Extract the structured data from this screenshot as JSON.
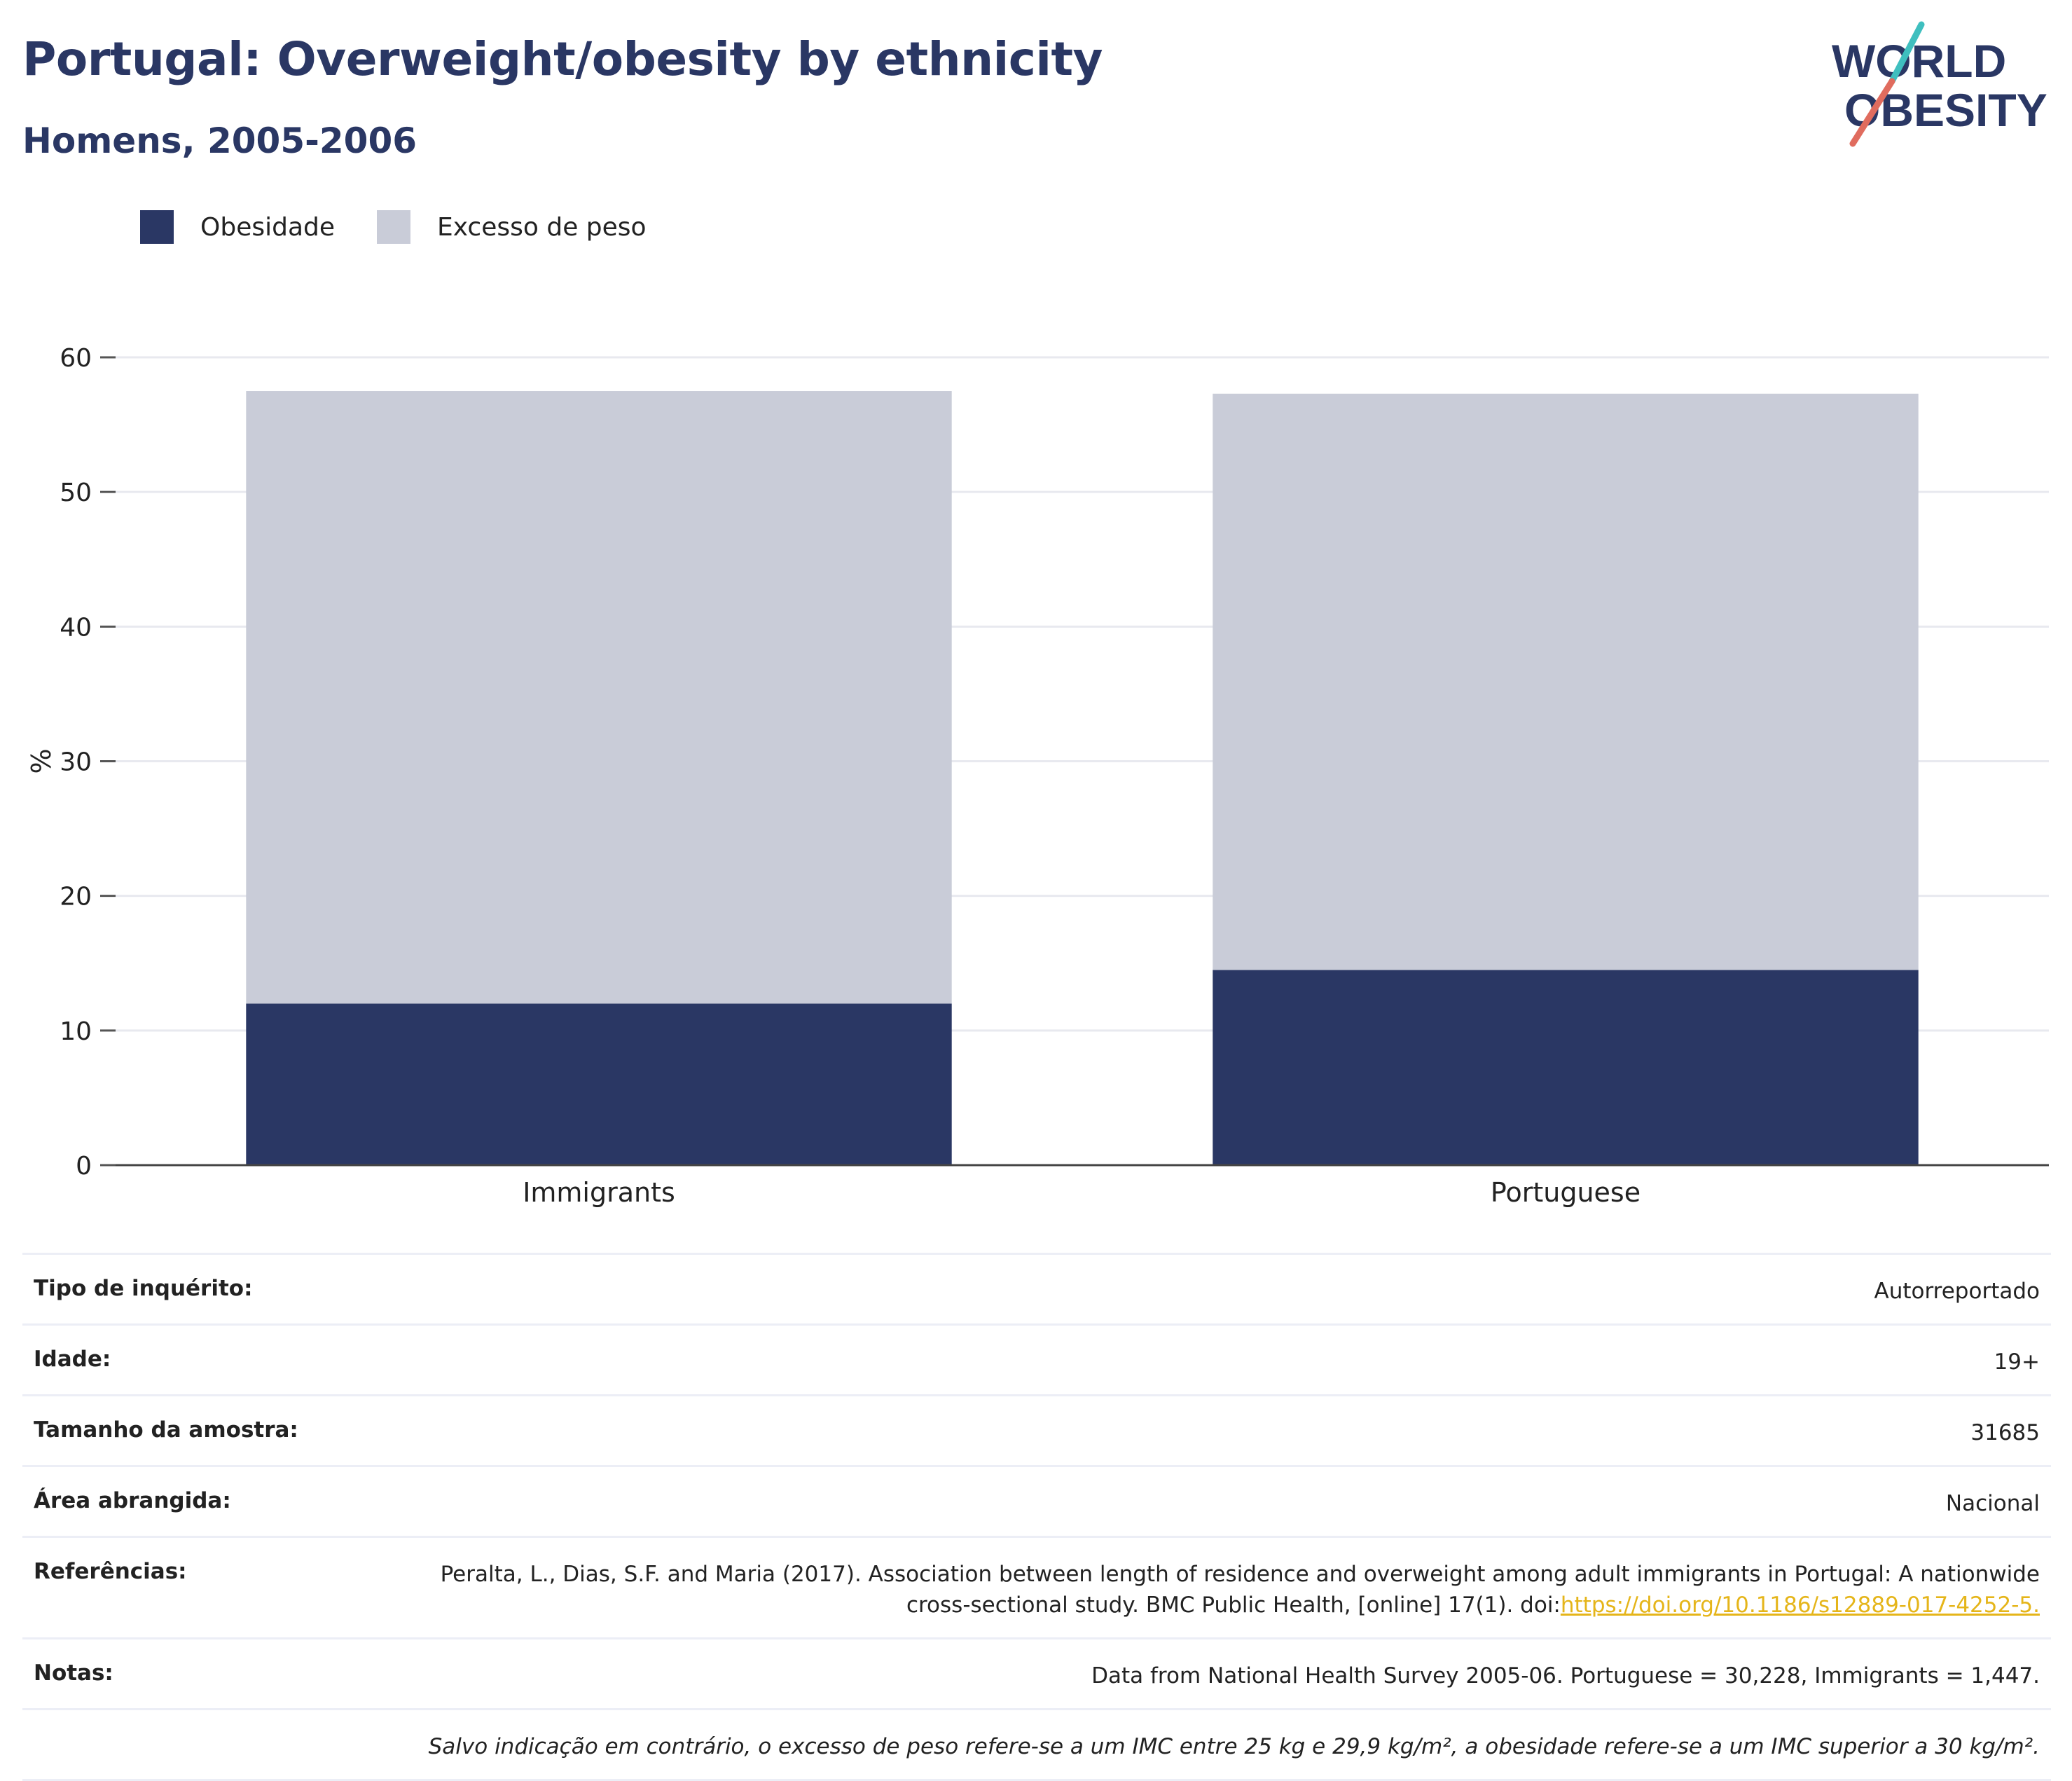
{
  "header": {
    "title": "Portugal: Overweight/obesity by ethnicity",
    "subtitle": "Homens, 2005-2006"
  },
  "logo": {
    "line1": "WORLD",
    "line2": "OBESITY",
    "colors": {
      "text": "#2a3764",
      "slash_top": "#3fbfbf",
      "slash_bottom": "#e06c5e"
    }
  },
  "chart_data": {
    "type": "bar",
    "stacked": true,
    "categories": [
      "Immigrants",
      "Portuguese"
    ],
    "series": [
      {
        "name": "Obesidade",
        "color": "#2a3764",
        "values": [
          12.0,
          14.5
        ]
      },
      {
        "name": "Excesso de peso",
        "color": "#c9ccd8",
        "values": [
          45.5,
          42.8
        ]
      }
    ],
    "ylabel": "%",
    "ylim": [
      0,
      60
    ],
    "yticks": [
      0,
      10,
      20,
      30,
      40,
      50,
      60
    ],
    "grid": true,
    "legend_position": "top-left"
  },
  "info": {
    "survey_type": {
      "label": "Tipo de inquérito:",
      "value": "Autorreportado"
    },
    "age": {
      "label": "Idade:",
      "value": "19+"
    },
    "sample_size": {
      "label": "Tamanho da amostra:",
      "value": "31685"
    },
    "area": {
      "label": "Área abrangida:",
      "value": "Nacional"
    },
    "references": {
      "label": "Referências:",
      "text": "Peralta, L., Dias, S.F. and Maria (2017). Association between length of residence and overweight among adult immigrants in Portugal: A nationwide cross-sectional study. BMC Public Health, [online] 17(1). doi:",
      "link": "https://doi.org/10.1186/s12889-017-4252-5."
    },
    "notes": {
      "label": "Notas:",
      "value": "Data from National Health Survey 2005-06. Portuguese = 30,228, Immigrants = 1,447."
    },
    "footnote": "Salvo indicação em contrário, o excesso de peso refere-se a um IMC entre 25 kg e 29,9 kg/m², a obesidade refere-se a um IMC superior a 30 kg/m²."
  }
}
